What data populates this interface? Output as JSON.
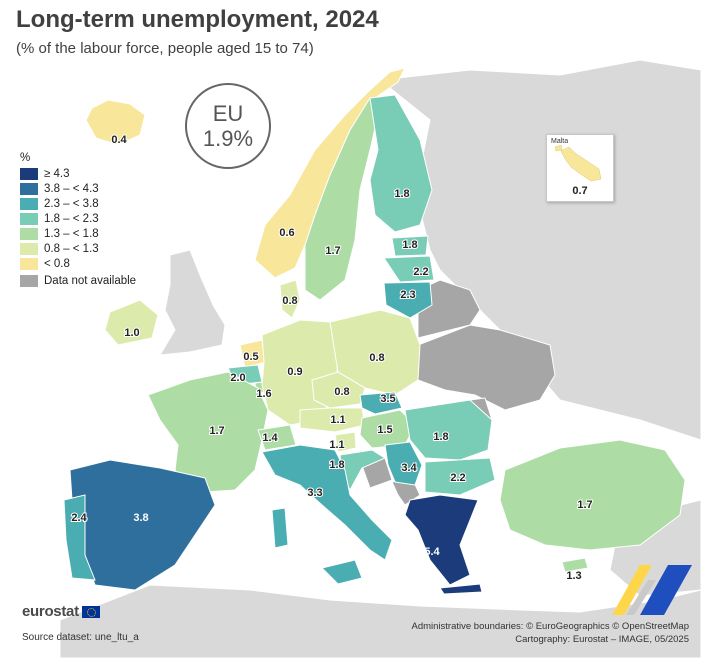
{
  "title": "Long-term unemployment, 2024",
  "subtitle": "(% of the labour force, people aged 15 to 74)",
  "eu": {
    "label": "EU",
    "value": "1.9%"
  },
  "legend": {
    "title": "%",
    "classes": [
      {
        "label": "≥ 4.3",
        "color": "#1b3b7a"
      },
      {
        "label": "3.8 – < 4.3",
        "color": "#2f6f9e"
      },
      {
        "label": "2.3 – < 3.8",
        "color": "#4aadb1"
      },
      {
        "label": "1.8 – < 2.3",
        "color": "#79ccb5"
      },
      {
        "label": "1.3 – < 1.8",
        "color": "#aedca5"
      },
      {
        "label": "0.8 – < 1.3",
        "color": "#dcebac"
      },
      {
        "label": "< 0.8",
        "color": "#f8e69a"
      }
    ],
    "not_available": {
      "label": "Data not available",
      "color": "#a6a6a6"
    }
  },
  "colors": {
    "non_eu": "#d9d9d9",
    "background": "#ffffff",
    "border": "#ffffff"
  },
  "inset": {
    "name": "Malta",
    "value": "0.7"
  },
  "regions": [
    {
      "id": "IS",
      "value": "0.4",
      "class": 6
    },
    {
      "id": "NO",
      "value": "0.6",
      "class": 6
    },
    {
      "id": "SE",
      "value": "1.7",
      "class": 4
    },
    {
      "id": "FI",
      "value": "1.8",
      "class": 3
    },
    {
      "id": "EE",
      "value": "1.8",
      "class": 3
    },
    {
      "id": "LV",
      "value": "2.2",
      "class": 3
    },
    {
      "id": "LT",
      "value": "2.3",
      "class": 2
    },
    {
      "id": "DK",
      "value": "0.8",
      "class": 5
    },
    {
      "id": "IE",
      "value": "1.0",
      "class": 5
    },
    {
      "id": "NL",
      "value": "0.5",
      "class": 6
    },
    {
      "id": "BE",
      "value": "2.0",
      "class": 3
    },
    {
      "id": "LU",
      "value": "1.6",
      "class": 4
    },
    {
      "id": "DE",
      "value": "0.9",
      "class": 5
    },
    {
      "id": "PL",
      "value": "0.8",
      "class": 5
    },
    {
      "id": "CZ",
      "value": "0.8",
      "class": 5
    },
    {
      "id": "SK",
      "value": "3.5",
      "class": 2
    },
    {
      "id": "AT",
      "value": "1.1",
      "class": 5
    },
    {
      "id": "HU",
      "value": "1.5",
      "class": 4
    },
    {
      "id": "FR",
      "value": "1.7",
      "class": 4
    },
    {
      "id": "CH",
      "value": "1.4",
      "class": 4
    },
    {
      "id": "SI",
      "value": "1.1",
      "class": 5
    },
    {
      "id": "HR",
      "value": "1.8",
      "class": 3
    },
    {
      "id": "RS",
      "value": "3.4",
      "class": 2
    },
    {
      "id": "RO",
      "value": "1.8",
      "class": 3
    },
    {
      "id": "BG",
      "value": "2.2",
      "class": 3
    },
    {
      "id": "IT",
      "value": "3.3",
      "class": 2
    },
    {
      "id": "ES",
      "value": "3.8",
      "class": 1
    },
    {
      "id": "PT",
      "value": "2.4",
      "class": 2
    },
    {
      "id": "EL",
      "value": "5.4",
      "class": 0
    },
    {
      "id": "TR",
      "value": "1.7",
      "class": 4
    },
    {
      "id": "CY",
      "value": "1.3",
      "class": 4
    },
    {
      "id": "MT",
      "value": "0.7",
      "class": 6
    }
  ],
  "eurostat": "eurostat",
  "source": "Source dataset: une_ltu_a",
  "credits": [
    "Administrative boundaries: © EuroGeographics © OpenStreetMap",
    "Cartography: Eurostat – IMAGE, 05/2025"
  ]
}
